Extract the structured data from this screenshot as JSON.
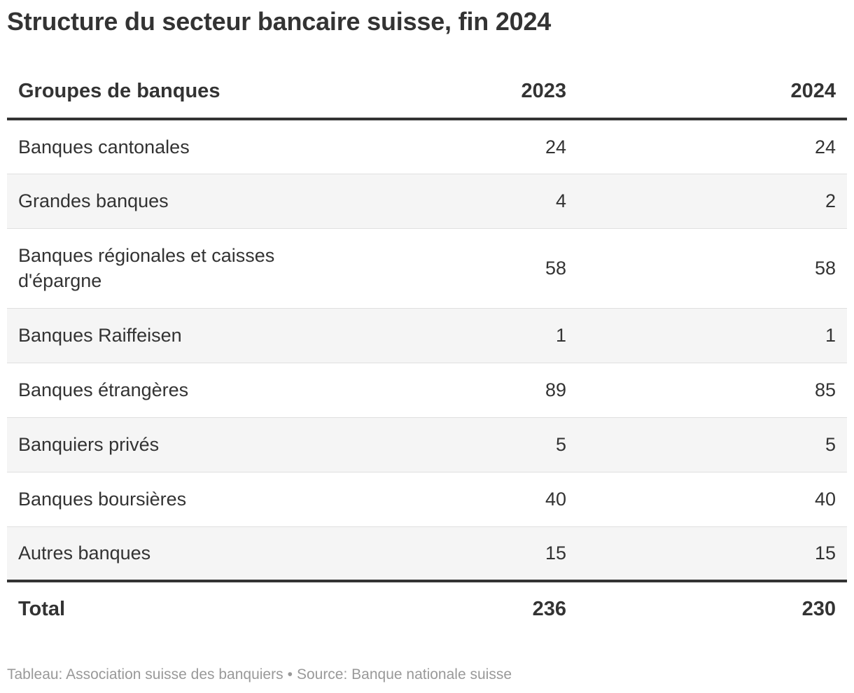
{
  "title": "Structure du secteur bancaire suisse, fin 2024",
  "table": {
    "headers": {
      "label": "Groupes de banques",
      "col1": "2023",
      "col2": "2024"
    },
    "rows": [
      {
        "label": "Banques cantonales",
        "y2023": "24",
        "y2024": "24"
      },
      {
        "label": "Grandes banques",
        "y2023": "4",
        "y2024": "2"
      },
      {
        "label": "Banques régionales et caisses d'épargne",
        "y2023": "58",
        "y2024": "58"
      },
      {
        "label": "Banques Raiffeisen",
        "y2023": "1",
        "y2024": "1"
      },
      {
        "label": "Banques étrangères",
        "y2023": "89",
        "y2024": "85"
      },
      {
        "label": "Banquiers privés",
        "y2023": "5",
        "y2024": "5"
      },
      {
        "label": "Banques boursières",
        "y2023": "40",
        "y2024": "40"
      },
      {
        "label": "Autres banques",
        "y2023": "15",
        "y2024": "15"
      }
    ],
    "total": {
      "label": "Total",
      "y2023": "236",
      "y2024": "230"
    }
  },
  "footer": {
    "credit": "Tableau: Association suisse des banquiers",
    "separator": "•",
    "source": "Source: Banque nationale suisse"
  },
  "colors": {
    "text": "#333333",
    "rule": "#333333",
    "stripe": "#f5f5f5",
    "footer_text": "#999999"
  }
}
